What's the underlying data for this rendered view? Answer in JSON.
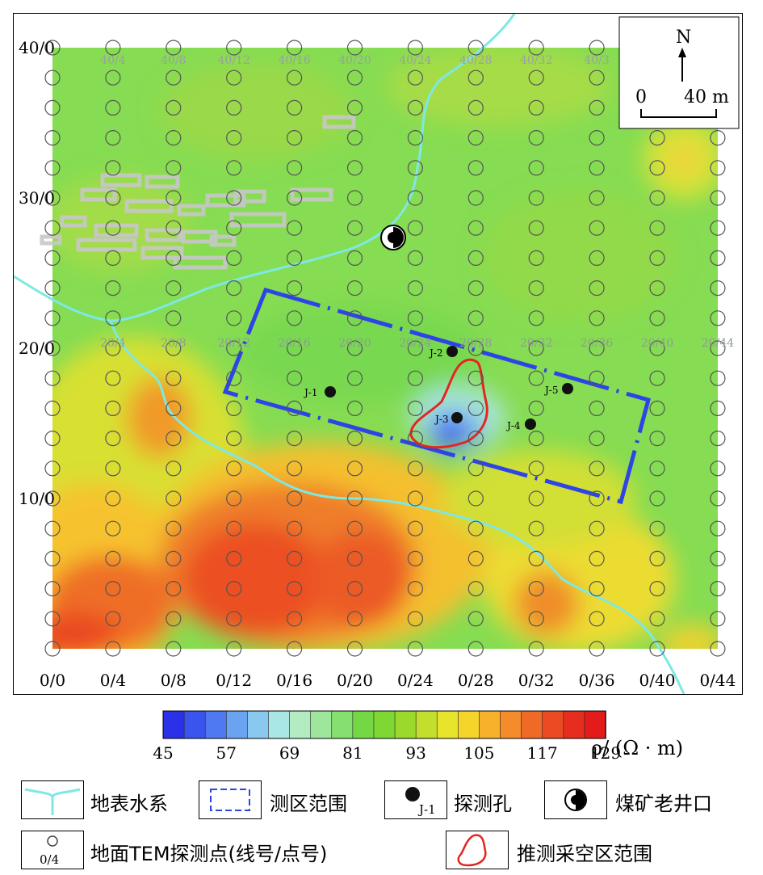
{
  "map": {
    "row_labels": [
      "40/0",
      "30/0",
      "20/0",
      "10/0",
      "0/0"
    ],
    "bottom_axis_labels": [
      "0/0",
      "0/4",
      "0/8",
      "0/12",
      "0/16",
      "0/20",
      "0/24",
      "0/28",
      "0/32",
      "0/36",
      "0/40",
      "0/44"
    ],
    "top_row_labels": [
      "40/4",
      "40/8",
      "40/12",
      "40/16",
      "40/20",
      "40/24",
      "40/28",
      "40/32",
      "40/3"
    ],
    "mid_row_labels": [
      "20/4",
      "20/8",
      "20/12",
      "20/16",
      "20/20",
      "20/24",
      "20/28",
      "20/32",
      "20/36",
      "20/40",
      "20/44"
    ],
    "boreholes": [
      "J-1",
      "J-2",
      "J-3",
      "J-4",
      "J-5"
    ],
    "north_label": "N",
    "scale_zero": "0",
    "scale_label": "40 m"
  },
  "colorbar": {
    "ticks": [
      "45",
      "57",
      "69",
      "81",
      "93",
      "105",
      "117",
      "129"
    ],
    "unit": "ρ/ (Ω · m)",
    "colors": [
      "#2b31e8",
      "#3a55ee",
      "#4f79f0",
      "#6aa3f0",
      "#89c9ef",
      "#a9e6e6",
      "#b2ecc0",
      "#9ee69c",
      "#86e070",
      "#74d844",
      "#7fd733",
      "#9bd92d",
      "#c4de2d",
      "#e8e42c",
      "#f6d42a",
      "#f7b12b",
      "#f48c2b",
      "#f06a27",
      "#ec4a22",
      "#e72e1e",
      "#e31c1b"
    ]
  },
  "legend": {
    "water": "地表水系",
    "survey_area": "测区范围",
    "borehole": "探测孔",
    "borehole_sample": "J-1",
    "old_shaft": "煤矿老井口",
    "tem_point": "地面TEM探测点(线号/点号)",
    "tem_sample": "0/4",
    "goaf": "推测采空区范围"
  }
}
